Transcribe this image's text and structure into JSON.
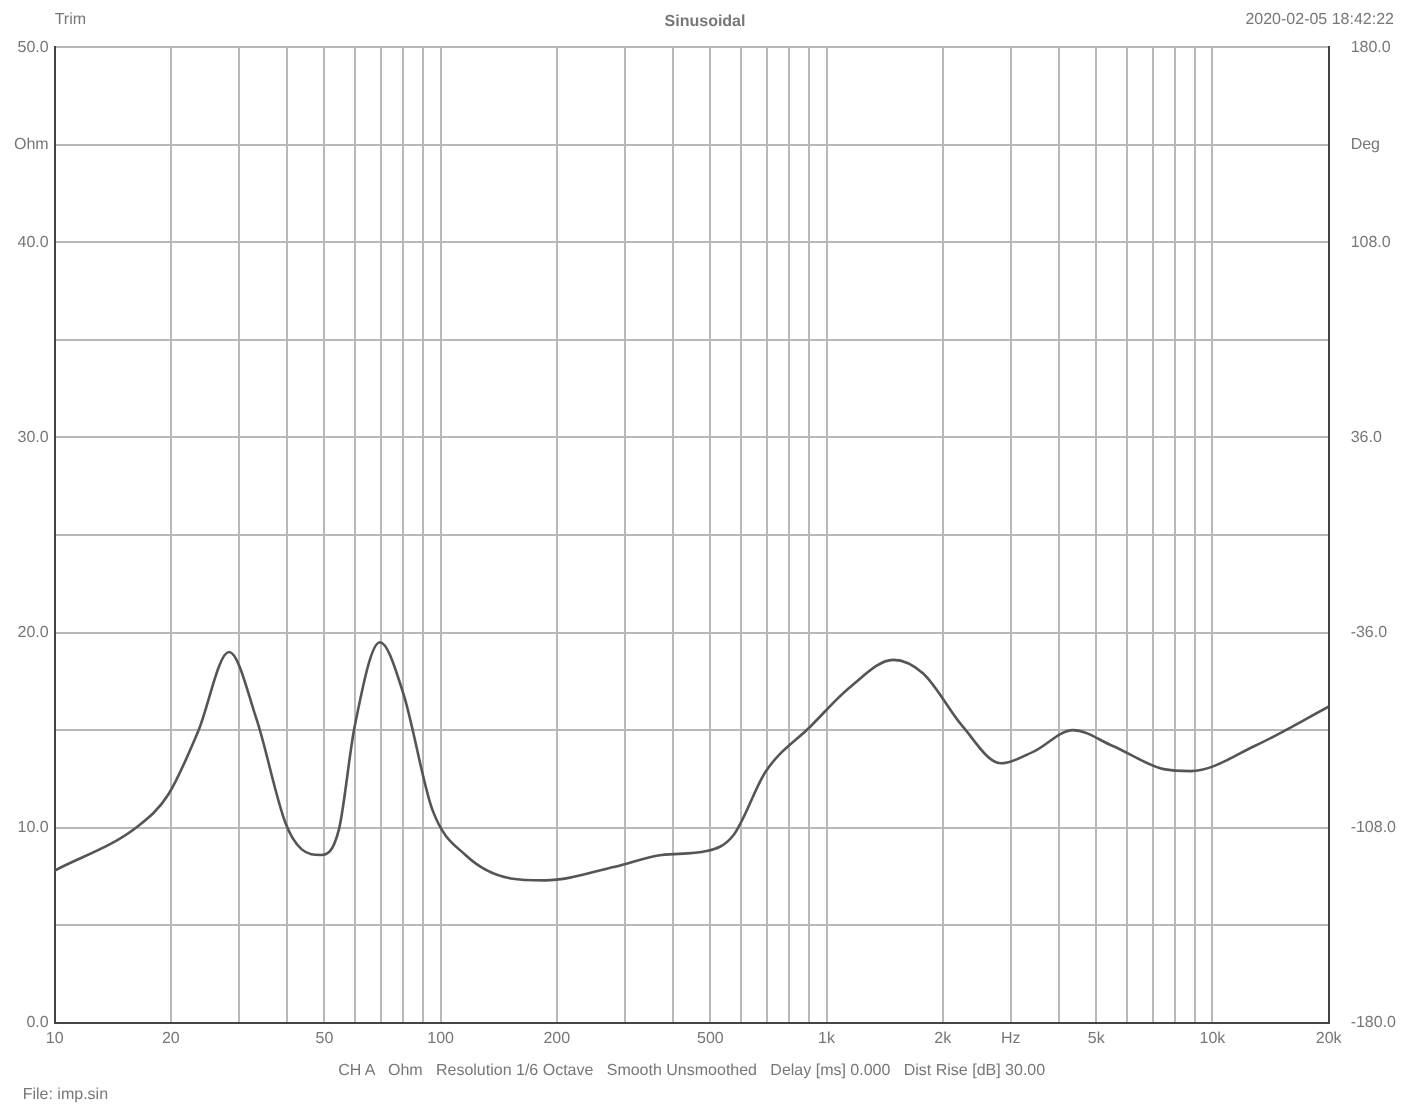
{
  "chart_data": {
    "type": "line",
    "title": "Sinusoidal",
    "annotations": [
      "Trim",
      "2020-02-05 18:42:22",
      "CH A   Ohm   Resolution 1/6 Octave   Smooth Unsmoothed   Delay [ms] 0.000   Dist Rise [dB] 30.00",
      "File: imp.sin"
    ],
    "log": "x",
    "grid": true,
    "legend": false,
    "marker": "none",
    "line_style": "solid",
    "xlim": [
      10,
      20000
    ],
    "xticks": [
      10,
      20,
      {
        "value": 30,
        "label": null
      },
      {
        "value": 40,
        "label": null
      },
      50,
      {
        "value": 60,
        "label": null
      },
      {
        "value": 70,
        "label": null
      },
      {
        "value": 80,
        "label": null
      },
      {
        "value": 90,
        "label": null
      },
      100,
      200,
      {
        "value": 300,
        "label": null
      },
      {
        "value": 400,
        "label": null
      },
      500,
      {
        "value": 600,
        "label": null
      },
      {
        "value": 700,
        "label": null
      },
      {
        "value": 800,
        "label": null
      },
      {
        "value": 900,
        "label": null
      },
      {
        "value": 1000,
        "label": "1k"
      },
      {
        "value": 2000,
        "label": "2k"
      },
      {
        "value": 3000,
        "label": "Hz"
      },
      {
        "value": 4000,
        "label": null
      },
      {
        "value": 5000,
        "label": "5k"
      },
      {
        "value": 6000,
        "label": null
      },
      {
        "value": 7000,
        "label": null
      },
      {
        "value": 8000,
        "label": null
      },
      {
        "value": 9000,
        "label": null
      },
      {
        "value": 10000,
        "label": "10k"
      },
      {
        "value": 20000,
        "label": "20k"
      }
    ],
    "ylim": [
      0,
      50
    ],
    "yticks": [
      {
        "value": 0,
        "label": "0.0"
      },
      {
        "value": 5,
        "label": null
      },
      {
        "value": 10,
        "label": "10.0"
      },
      {
        "value": 15,
        "label": null
      },
      {
        "value": 20,
        "label": "20.0"
      },
      {
        "value": 25,
        "label": null
      },
      {
        "value": 30,
        "label": "30.0"
      },
      {
        "value": 35,
        "label": null
      },
      {
        "value": 40,
        "label": "40.0"
      },
      {
        "value": 45,
        "label": "Ohm"
      },
      {
        "value": 50,
        "label": "50.0"
      }
    ],
    "y2lim": [
      -180,
      180
    ],
    "y2ticks": [
      {
        "value": -180,
        "label": "-180.0"
      },
      {
        "value": -108,
        "label": "-108.0"
      },
      {
        "value": -36,
        "label": "-36.0"
      },
      {
        "value": 36,
        "label": "36.0"
      },
      {
        "value": 108,
        "label": "108.0"
      },
      {
        "value": 144,
        "label": "Deg"
      },
      {
        "value": 180,
        "label": "180.0"
      }
    ],
    "series": [
      {
        "color": "#555555",
        "x": [
          10,
          16.5,
          19.7,
          23.5,
          28.3,
          33.3,
          39.7,
          43.6,
          49,
          54.5,
          59.9,
          69.6,
          80,
          95.3,
          116,
          152,
          186,
          283,
          374,
          489,
          573,
          697,
          910,
          1150,
          1490,
          1780,
          2250,
          2830,
          3440,
          4350,
          5500,
          7480,
          8780,
          12900,
          20000
        ],
        "values": [
          7.8,
          10.1,
          11.7,
          14.9,
          19.0,
          15.6,
          10.2,
          8.9,
          8.6,
          9.9,
          15.2,
          19.5,
          16.9,
          10.9,
          8.6,
          7.4,
          7.3,
          8.0,
          8.6,
          8.8,
          9.6,
          12.9,
          15.2,
          17.2,
          18.6,
          17.9,
          15.2,
          13.3,
          13.9,
          15.0,
          14.2,
          13.0,
          12.9,
          14.2,
          16.2
        ]
      }
    ]
  }
}
